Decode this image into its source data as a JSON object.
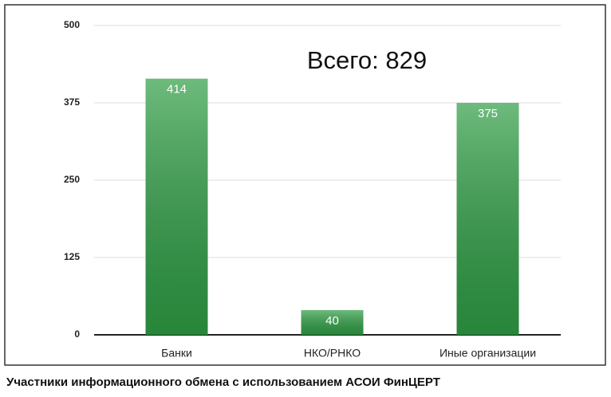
{
  "chart_data": {
    "type": "bar",
    "annotation": "Всего: 829",
    "categories": [
      "Банки",
      "НКО/РНКО",
      "Иные организации"
    ],
    "values": [
      414,
      40,
      375
    ],
    "color": "#2f9e45",
    "ylim": [
      0,
      500
    ],
    "yticks": [
      0,
      125,
      250,
      375,
      500
    ],
    "grid": true,
    "caption": "Участники информационного обмена с использованием АСОИ ФинЦЕРТ"
  }
}
